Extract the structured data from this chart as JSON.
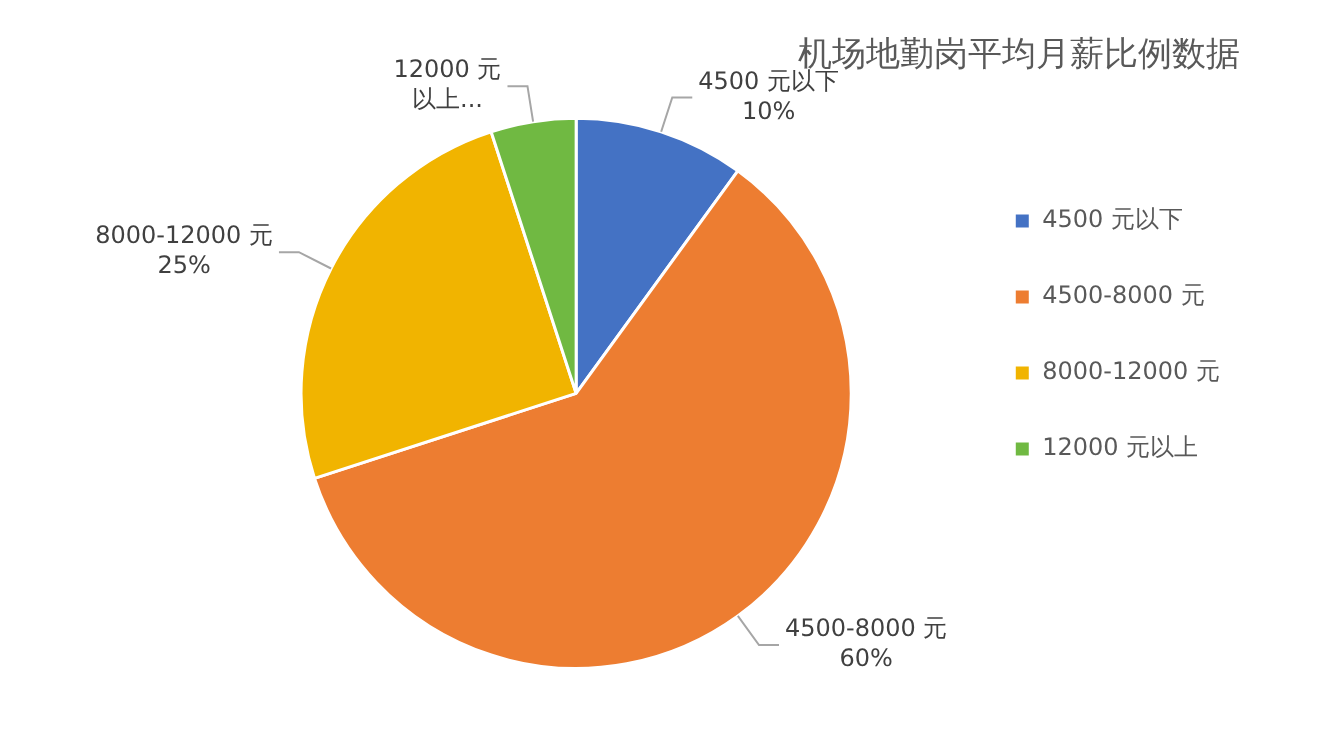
{
  "chart_data": {
    "type": "pie",
    "title": "机场地勤岗平均月薪比例数据",
    "categories": [
      "4500 元以下",
      "4500-8000 元",
      "8000-12000 元",
      "12000 元以上"
    ],
    "values": [
      10,
      60,
      25,
      5
    ],
    "colors": [
      "#4472c4",
      "#ed7d31",
      "#f1b400",
      "#70b942"
    ],
    "value_labels": [
      "4500 元以下\n10%",
      "4500-8000 元\n60%",
      "8000-12000 元\n25%",
      "12000 元以上..."
    ],
    "legend": "right"
  }
}
